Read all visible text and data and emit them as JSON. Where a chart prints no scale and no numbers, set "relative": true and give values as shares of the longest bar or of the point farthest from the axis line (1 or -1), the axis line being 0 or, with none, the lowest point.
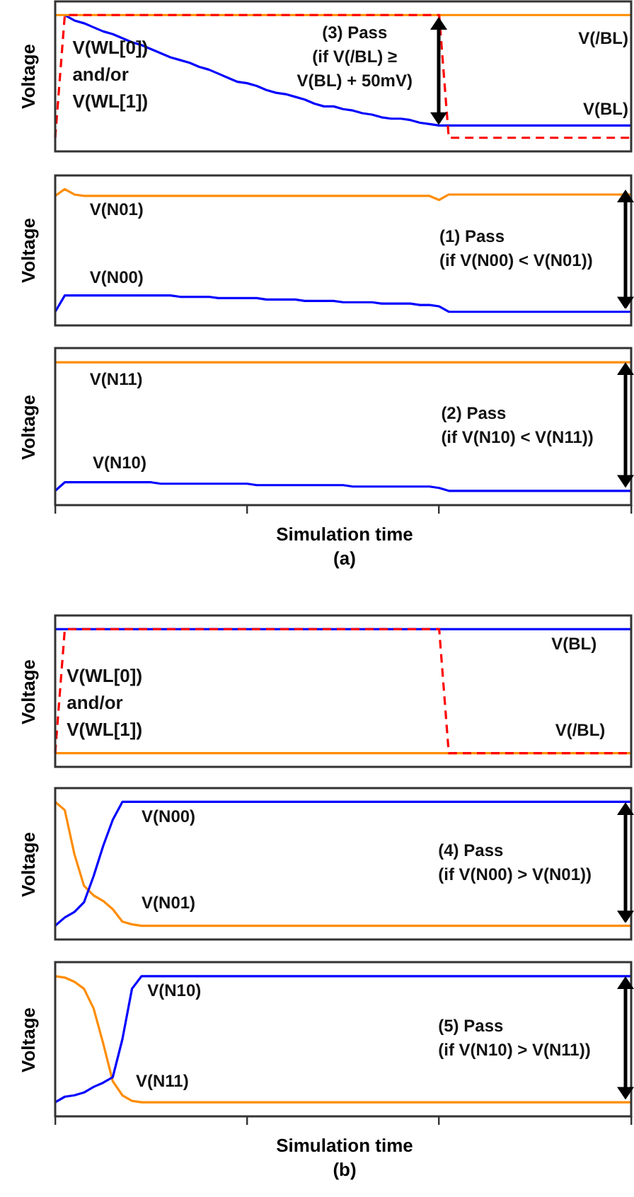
{
  "chart_data": [
    {
      "type": "line",
      "ylabel": "Voltage",
      "relative": true,
      "marker": "none",
      "categories": [
        null,
        null,
        null,
        null,
        null,
        null,
        null,
        null,
        null,
        null,
        null,
        null,
        null,
        null,
        null,
        null,
        null,
        null,
        null,
        null,
        null,
        null,
        null,
        null,
        null,
        null,
        null,
        null,
        null,
        null,
        null,
        null,
        null,
        null,
        null,
        null,
        null,
        null,
        null,
        null,
        null,
        null,
        null,
        null,
        null,
        null,
        null,
        null,
        null,
        null,
        null,
        null,
        null,
        null,
        null,
        null,
        null,
        null,
        null,
        null,
        null
      ],
      "annotations": [
        "(3) Pass\n(if V(/BL) ≥\nV(BL) + 50mV)"
      ],
      "series": [
        {
          "name": "V(WL[0])\nand/or\nV(WL[1])",
          "color": "#ff0000",
          "line_style": "dashed",
          "values": [
            0.1,
            1,
            1,
            1,
            1,
            1,
            1,
            1,
            1,
            1,
            1,
            1,
            1,
            1,
            1,
            1,
            1,
            1,
            1,
            1,
            1,
            1,
            1,
            1,
            1,
            1,
            1,
            1,
            1,
            1,
            1,
            1,
            1,
            1,
            1,
            1,
            1,
            1,
            1,
            1,
            1,
            0.1,
            0.1,
            0.1,
            0.1,
            0.1,
            0.1,
            0.1,
            0.1,
            0.1,
            0.1,
            0.1,
            0.1,
            0.1,
            0.1,
            0.1,
            0.1,
            0.1,
            0.1,
            0.1,
            0.1
          ]
        },
        {
          "name": "V(/BL)",
          "color": "#ff8c00",
          "values": [
            1,
            1,
            1,
            1,
            1,
            1,
            1,
            1,
            1,
            1,
            1,
            1,
            1,
            1,
            1,
            1,
            1,
            1,
            1,
            1,
            1,
            1,
            1,
            1,
            1,
            1,
            1,
            1,
            1,
            1,
            1,
            1,
            1,
            1,
            1,
            1,
            1,
            1,
            1,
            1,
            1,
            1,
            1,
            1,
            1,
            1,
            1,
            1,
            1,
            1,
            1,
            1,
            1,
            1,
            1,
            1,
            1,
            1,
            1,
            1,
            1
          ]
        },
        {
          "name": "V(BL)",
          "color": "#0000ff",
          "values": [
            null,
            1,
            0.96,
            0.94,
            0.91,
            0.88,
            0.86,
            0.83,
            0.8,
            0.78,
            0.75,
            0.72,
            0.69,
            0.67,
            0.65,
            0.62,
            0.6,
            0.57,
            0.54,
            0.51,
            0.5,
            0.48,
            0.45,
            0.43,
            0.42,
            0.4,
            0.38,
            0.35,
            0.33,
            0.33,
            0.31,
            0.3,
            0.28,
            0.27,
            0.25,
            0.24,
            0.24,
            0.23,
            0.21,
            0.2,
            0.19,
            0.19,
            0.19,
            0.19,
            0.19,
            0.19,
            0.19,
            0.19,
            0.19,
            0.19,
            0.19,
            0.19,
            0.19,
            0.19,
            0.19,
            0.19,
            0.19,
            0.19,
            0.19,
            0.19,
            0.19
          ]
        }
      ]
    },
    {
      "type": "line",
      "ylabel": "Voltage",
      "relative": true,
      "marker": "none",
      "categories": [
        null,
        null,
        null,
        null,
        null,
        null,
        null,
        null,
        null,
        null,
        null,
        null,
        null,
        null,
        null,
        null,
        null,
        null,
        null,
        null,
        null,
        null,
        null,
        null,
        null,
        null,
        null,
        null,
        null,
        null,
        null,
        null,
        null,
        null,
        null,
        null,
        null,
        null,
        null,
        null,
        null,
        null,
        null,
        null,
        null,
        null,
        null,
        null,
        null,
        null,
        null,
        null,
        null,
        null,
        null,
        null,
        null,
        null,
        null,
        null,
        null
      ],
      "annotations": [
        "(1) Pass\n(if V(N00) < V(N01))"
      ],
      "series": [
        {
          "name": "V(N01)",
          "color": "#ff8c00",
          "values": [
            0.95,
            1,
            0.96,
            0.95,
            0.95,
            0.95,
            0.95,
            0.95,
            0.95,
            0.95,
            0.95,
            0.95,
            0.95,
            0.95,
            0.95,
            0.95,
            0.95,
            0.95,
            0.95,
            0.95,
            0.95,
            0.95,
            0.95,
            0.95,
            0.95,
            0.95,
            0.95,
            0.95,
            0.95,
            0.95,
            0.95,
            0.95,
            0.95,
            0.95,
            0.95,
            0.95,
            0.95,
            0.95,
            0.95,
            0.95,
            0.92,
            0.96,
            0.96,
            0.96,
            0.96,
            0.96,
            0.96,
            0.96,
            0.96,
            0.96,
            0.96,
            0.96,
            0.96,
            0.96,
            0.96,
            0.96,
            0.96,
            0.96,
            0.96,
            0.96,
            0.96
          ]
        },
        {
          "name": "V(N00)",
          "color": "#0000ff",
          "values": [
            0.1,
            0.22,
            0.22,
            0.22,
            0.22,
            0.22,
            0.22,
            0.22,
            0.22,
            0.22,
            0.22,
            0.22,
            0.22,
            0.21,
            0.21,
            0.21,
            0.21,
            0.2,
            0.2,
            0.2,
            0.2,
            0.2,
            0.19,
            0.19,
            0.19,
            0.19,
            0.18,
            0.18,
            0.18,
            0.18,
            0.17,
            0.17,
            0.17,
            0.17,
            0.16,
            0.16,
            0.16,
            0.16,
            0.15,
            0.15,
            0.14,
            0.1,
            0.1,
            0.1,
            0.1,
            0.1,
            0.1,
            0.1,
            0.1,
            0.1,
            0.1,
            0.1,
            0.1,
            0.1,
            0.1,
            0.1,
            0.1,
            0.1,
            0.1,
            0.1,
            0.1
          ]
        }
      ]
    },
    {
      "type": "line",
      "ylabel": "Voltage",
      "xlabel": "Simulation time",
      "relative": true,
      "marker": "none",
      "categories": [
        null,
        null,
        null,
        null,
        null,
        null,
        null,
        null,
        null,
        null,
        null,
        null,
        null,
        null,
        null,
        null,
        null,
        null,
        null,
        null,
        null,
        null,
        null,
        null,
        null,
        null,
        null,
        null,
        null,
        null,
        null,
        null,
        null,
        null,
        null,
        null,
        null,
        null,
        null,
        null,
        null,
        null,
        null,
        null,
        null,
        null,
        null,
        null,
        null,
        null,
        null,
        null,
        null,
        null,
        null,
        null,
        null,
        null,
        null,
        null,
        null
      ],
      "annotations": [
        "(2) Pass\n(if V(N10) < V(N11))",
        "(a)"
      ],
      "series": [
        {
          "name": "V(N11)",
          "color": "#ff8c00",
          "values": [
            1,
            1,
            1,
            1,
            1,
            1,
            1,
            1,
            1,
            1,
            1,
            1,
            1,
            1,
            1,
            1,
            1,
            1,
            1,
            1,
            1,
            1,
            1,
            1,
            1,
            1,
            1,
            1,
            1,
            1,
            1,
            1,
            1,
            1,
            1,
            1,
            1,
            1,
            1,
            1,
            1,
            1,
            1,
            1,
            1,
            1,
            1,
            1,
            1,
            1,
            1,
            1,
            1,
            1,
            1,
            1,
            1,
            1,
            1,
            1,
            1
          ]
        },
        {
          "name": "V(N10)",
          "color": "#0000ff",
          "values": [
            0.1,
            0.16,
            0.16,
            0.16,
            0.16,
            0.16,
            0.16,
            0.16,
            0.16,
            0.16,
            0.16,
            0.15,
            0.15,
            0.15,
            0.15,
            0.15,
            0.15,
            0.15,
            0.15,
            0.15,
            0.15,
            0.14,
            0.14,
            0.14,
            0.14,
            0.14,
            0.14,
            0.14,
            0.14,
            0.14,
            0.14,
            0.13,
            0.13,
            0.13,
            0.13,
            0.13,
            0.13,
            0.13,
            0.13,
            0.13,
            0.12,
            0.1,
            0.1,
            0.1,
            0.1,
            0.1,
            0.1,
            0.1,
            0.1,
            0.1,
            0.1,
            0.1,
            0.1,
            0.1,
            0.1,
            0.1,
            0.1,
            0.1,
            0.1,
            0.1,
            0.1
          ]
        }
      ]
    },
    {
      "type": "line",
      "ylabel": "Voltage",
      "relative": true,
      "marker": "none",
      "categories": [
        null,
        null,
        null,
        null,
        null,
        null,
        null,
        null,
        null,
        null,
        null,
        null,
        null,
        null,
        null,
        null,
        null,
        null,
        null,
        null,
        null,
        null,
        null,
        null,
        null,
        null,
        null,
        null,
        null,
        null,
        null,
        null,
        null,
        null,
        null,
        null,
        null,
        null,
        null,
        null,
        null,
        null,
        null,
        null,
        null,
        null,
        null,
        null,
        null,
        null,
        null,
        null,
        null,
        null,
        null,
        null,
        null,
        null,
        null,
        null,
        null
      ],
      "series": [
        {
          "name": "V(WL[0])\nand/or\nV(WL[1])",
          "color": "#ff0000",
          "line_style": "dashed",
          "values": [
            0.1,
            1,
            1,
            1,
            1,
            1,
            1,
            1,
            1,
            1,
            1,
            1,
            1,
            1,
            1,
            1,
            1,
            1,
            1,
            1,
            1,
            1,
            1,
            1,
            1,
            1,
            1,
            1,
            1,
            1,
            1,
            1,
            1,
            1,
            1,
            1,
            1,
            1,
            1,
            1,
            1,
            0.1,
            0.1,
            0.1,
            0.1,
            0.1,
            0.1,
            0.1,
            0.1,
            0.1,
            0.1,
            0.1,
            0.1,
            0.1,
            0.1,
            0.1,
            0.1,
            0.1,
            0.1,
            0.1,
            0.1
          ]
        },
        {
          "name": "V(BL)",
          "color": "#0000ff",
          "values": [
            1,
            1,
            1,
            1,
            1,
            1,
            1,
            1,
            1,
            1,
            1,
            1,
            1,
            1,
            1,
            1,
            1,
            1,
            1,
            1,
            1,
            1,
            1,
            1,
            1,
            1,
            1,
            1,
            1,
            1,
            1,
            1,
            1,
            1,
            1,
            1,
            1,
            1,
            1,
            1,
            1,
            1,
            1,
            1,
            1,
            1,
            1,
            1,
            1,
            1,
            1,
            1,
            1,
            1,
            1,
            1,
            1,
            1,
            1,
            1,
            1
          ]
        },
        {
          "name": "V(/BL)",
          "color": "#ff8c00",
          "values": [
            0.1,
            0.1,
            0.1,
            0.1,
            0.1,
            0.1,
            0.1,
            0.1,
            0.1,
            0.1,
            0.1,
            0.1,
            0.1,
            0.1,
            0.1,
            0.1,
            0.1,
            0.1,
            0.1,
            0.1,
            0.1,
            0.1,
            0.1,
            0.1,
            0.1,
            0.1,
            0.1,
            0.1,
            0.1,
            0.1,
            0.1,
            0.1,
            0.1,
            0.1,
            0.1,
            0.1,
            0.1,
            0.1,
            0.1,
            0.1,
            0.1,
            0.1,
            0.1,
            0.1,
            0.1,
            0.1,
            0.1,
            0.1,
            0.1,
            0.1,
            0.1,
            0.1,
            0.1,
            0.1,
            0.1,
            0.1,
            0.1,
            0.1,
            0.1,
            0.1,
            0.1
          ]
        }
      ]
    },
    {
      "type": "line",
      "ylabel": "Voltage",
      "relative": true,
      "marker": "none",
      "categories": [
        null,
        null,
        null,
        null,
        null,
        null,
        null,
        null,
        null,
        null,
        null,
        null,
        null,
        null,
        null,
        null,
        null,
        null,
        null,
        null,
        null,
        null,
        null,
        null,
        null,
        null,
        null,
        null,
        null,
        null,
        null,
        null,
        null,
        null,
        null,
        null,
        null,
        null,
        null,
        null,
        null,
        null,
        null,
        null,
        null,
        null,
        null,
        null,
        null,
        null,
        null,
        null,
        null,
        null,
        null,
        null,
        null,
        null,
        null,
        null,
        null
      ],
      "annotations": [
        "(4) Pass\n(if V(N00) > V(N01))"
      ],
      "series": [
        {
          "name": "V(N00)",
          "color": "#0000ff",
          "values": [
            0.1,
            0.16,
            0.2,
            0.27,
            0.46,
            0.68,
            0.87,
            1,
            1,
            1,
            1,
            1,
            1,
            1,
            1,
            1,
            1,
            1,
            1,
            1,
            1,
            1,
            1,
            1,
            1,
            1,
            1,
            1,
            1,
            1,
            1,
            1,
            1,
            1,
            1,
            1,
            1,
            1,
            1,
            1,
            1,
            1,
            1,
            1,
            1,
            1,
            1,
            1,
            1,
            1,
            1,
            1,
            1,
            1,
            1,
            1,
            1,
            1,
            1,
            1,
            1
          ]
        },
        {
          "name": "V(N01)",
          "color": "#ff8c00",
          "values": [
            1,
            0.94,
            0.62,
            0.39,
            0.32,
            0.28,
            0.22,
            0.13,
            0.11,
            0.1,
            0.1,
            0.1,
            0.1,
            0.1,
            0.1,
            0.1,
            0.1,
            0.1,
            0.1,
            0.1,
            0.1,
            0.1,
            0.1,
            0.1,
            0.1,
            0.1,
            0.1,
            0.1,
            0.1,
            0.1,
            0.1,
            0.1,
            0.1,
            0.1,
            0.1,
            0.1,
            0.1,
            0.1,
            0.1,
            0.1,
            0.1,
            0.1,
            0.1,
            0.1,
            0.1,
            0.1,
            0.1,
            0.1,
            0.1,
            0.1,
            0.1,
            0.1,
            0.1,
            0.1,
            0.1,
            0.1,
            0.1,
            0.1,
            0.1,
            0.1,
            0.1
          ]
        }
      ]
    },
    {
      "type": "line",
      "ylabel": "Voltage",
      "xlabel": "Simulation time",
      "relative": true,
      "marker": "none",
      "categories": [
        null,
        null,
        null,
        null,
        null,
        null,
        null,
        null,
        null,
        null,
        null,
        null,
        null,
        null,
        null,
        null,
        null,
        null,
        null,
        null,
        null,
        null,
        null,
        null,
        null,
        null,
        null,
        null,
        null,
        null,
        null,
        null,
        null,
        null,
        null,
        null,
        null,
        null,
        null,
        null,
        null,
        null,
        null,
        null,
        null,
        null,
        null,
        null,
        null,
        null,
        null,
        null,
        null,
        null,
        null,
        null,
        null,
        null,
        null,
        null,
        null
      ],
      "annotations": [
        "(5) Pass\n(if V(N10) > V(N11))",
        "(b)"
      ],
      "series": [
        {
          "name": "V(N10)",
          "color": "#0000ff",
          "values": [
            0.1,
            0.14,
            0.15,
            0.17,
            0.21,
            0.24,
            0.28,
            0.55,
            0.91,
            1,
            1,
            1,
            1,
            1,
            1,
            1,
            1,
            1,
            1,
            1,
            1,
            1,
            1,
            1,
            1,
            1,
            1,
            1,
            1,
            1,
            1,
            1,
            1,
            1,
            1,
            1,
            1,
            1,
            1,
            1,
            1,
            1,
            1,
            1,
            1,
            1,
            1,
            1,
            1,
            1,
            1,
            1,
            1,
            1,
            1,
            1,
            1,
            1,
            1,
            1,
            1
          ]
        },
        {
          "name": "V(N11)",
          "color": "#ff8c00",
          "values": [
            1,
            0.99,
            0.96,
            0.91,
            0.77,
            0.52,
            0.25,
            0.15,
            0.11,
            0.1,
            0.1,
            0.1,
            0.1,
            0.1,
            0.1,
            0.1,
            0.1,
            0.1,
            0.1,
            0.1,
            0.1,
            0.1,
            0.1,
            0.1,
            0.1,
            0.1,
            0.1,
            0.1,
            0.1,
            0.1,
            0.1,
            0.1,
            0.1,
            0.1,
            0.1,
            0.1,
            0.1,
            0.1,
            0.1,
            0.1,
            0.1,
            0.1,
            0.1,
            0.1,
            0.1,
            0.1,
            0.1,
            0.1,
            0.1,
            0.1,
            0.1,
            0.1,
            0.1,
            0.1,
            0.1,
            0.1,
            0.1,
            0.1,
            0.1,
            0.1,
            0.1
          ]
        }
      ]
    }
  ]
}
